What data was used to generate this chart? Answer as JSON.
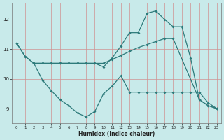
{
  "xlabel": "Humidex (Indice chaleur)",
  "bg_color": "#c8eaea",
  "line_color": "#2d7a7a",
  "grid_color": "#d09090",
  "xlim": [
    -0.5,
    23.5
  ],
  "ylim": [
    8.5,
    12.55
  ],
  "yticks": [
    9,
    10,
    11,
    12
  ],
  "xticks": [
    0,
    1,
    2,
    3,
    4,
    5,
    6,
    7,
    8,
    9,
    10,
    11,
    12,
    13,
    14,
    15,
    16,
    17,
    18,
    19,
    20,
    21,
    22,
    23
  ],
  "line1_x": [
    0,
    1,
    2,
    3,
    4,
    5,
    6,
    7,
    8,
    9,
    10,
    11,
    12,
    13,
    14,
    15,
    16,
    17,
    18,
    21,
    22,
    23
  ],
  "line1_y": [
    11.2,
    10.75,
    10.52,
    10.52,
    10.52,
    10.52,
    10.52,
    10.52,
    10.52,
    10.52,
    10.52,
    10.65,
    10.78,
    10.92,
    11.05,
    11.15,
    11.25,
    11.35,
    11.35,
    9.3,
    9.1,
    9.0
  ],
  "line2_x": [
    2,
    3,
    4,
    5,
    6,
    7,
    8,
    9,
    10,
    11,
    12,
    13,
    14,
    15,
    16,
    17,
    18,
    19,
    20,
    21,
    22,
    23
  ],
  "line2_y": [
    10.52,
    10.52,
    10.52,
    10.52,
    10.52,
    10.52,
    10.52,
    10.52,
    10.4,
    10.7,
    11.1,
    11.55,
    11.55,
    12.2,
    12.28,
    12.0,
    11.75,
    11.75,
    10.7,
    9.3,
    9.1,
    9.0
  ],
  "line3_x": [
    0,
    1,
    2,
    3,
    4,
    5,
    6,
    7,
    8,
    9,
    10,
    11,
    12,
    13,
    14,
    15,
    16,
    17,
    18,
    19,
    20,
    21,
    22,
    23
  ],
  "line3_y": [
    11.2,
    10.75,
    10.52,
    9.95,
    9.6,
    9.3,
    9.1,
    8.85,
    8.72,
    8.9,
    9.5,
    9.75,
    10.1,
    9.55,
    9.55,
    9.55,
    9.55,
    9.55,
    9.55,
    9.55,
    9.55,
    9.55,
    9.2,
    9.0
  ],
  "figwidth": 3.2,
  "figheight": 2.0,
  "dpi": 100
}
